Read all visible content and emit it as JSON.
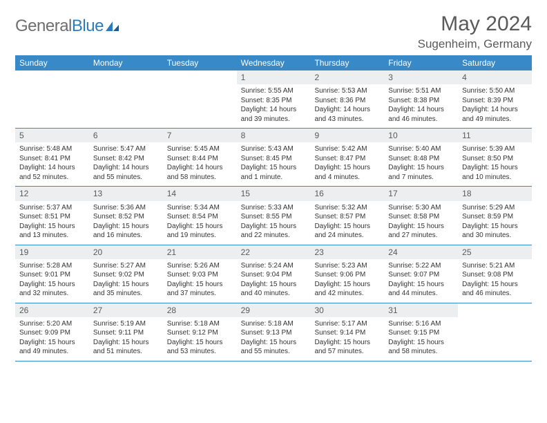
{
  "logo": {
    "text_gray": "General",
    "text_blue": "Blue"
  },
  "title": "May 2024",
  "location": "Sugenheim, Germany",
  "colors": {
    "header_bg": "#3889c7",
    "header_text": "#ffffff",
    "daynum_bg": "#eceeef",
    "text": "#333333",
    "title_text": "#5a5a5a",
    "logo_gray": "#6f6f6f",
    "logo_blue": "#2d7bbd",
    "row_border": "#3889c7"
  },
  "day_names": [
    "Sunday",
    "Monday",
    "Tuesday",
    "Wednesday",
    "Thursday",
    "Friday",
    "Saturday"
  ],
  "weeks": [
    [
      {
        "n": "",
        "empty": true
      },
      {
        "n": "",
        "empty": true
      },
      {
        "n": "",
        "empty": true
      },
      {
        "n": "1",
        "sr": "Sunrise: 5:55 AM",
        "ss": "Sunset: 8:35 PM",
        "dl1": "Daylight: 14 hours",
        "dl2": "and 39 minutes."
      },
      {
        "n": "2",
        "sr": "Sunrise: 5:53 AM",
        "ss": "Sunset: 8:36 PM",
        "dl1": "Daylight: 14 hours",
        "dl2": "and 43 minutes."
      },
      {
        "n": "3",
        "sr": "Sunrise: 5:51 AM",
        "ss": "Sunset: 8:38 PM",
        "dl1": "Daylight: 14 hours",
        "dl2": "and 46 minutes."
      },
      {
        "n": "4",
        "sr": "Sunrise: 5:50 AM",
        "ss": "Sunset: 8:39 PM",
        "dl1": "Daylight: 14 hours",
        "dl2": "and 49 minutes."
      }
    ],
    [
      {
        "n": "5",
        "sr": "Sunrise: 5:48 AM",
        "ss": "Sunset: 8:41 PM",
        "dl1": "Daylight: 14 hours",
        "dl2": "and 52 minutes."
      },
      {
        "n": "6",
        "sr": "Sunrise: 5:47 AM",
        "ss": "Sunset: 8:42 PM",
        "dl1": "Daylight: 14 hours",
        "dl2": "and 55 minutes."
      },
      {
        "n": "7",
        "sr": "Sunrise: 5:45 AM",
        "ss": "Sunset: 8:44 PM",
        "dl1": "Daylight: 14 hours",
        "dl2": "and 58 minutes."
      },
      {
        "n": "8",
        "sr": "Sunrise: 5:43 AM",
        "ss": "Sunset: 8:45 PM",
        "dl1": "Daylight: 15 hours",
        "dl2": "and 1 minute."
      },
      {
        "n": "9",
        "sr": "Sunrise: 5:42 AM",
        "ss": "Sunset: 8:47 PM",
        "dl1": "Daylight: 15 hours",
        "dl2": "and 4 minutes."
      },
      {
        "n": "10",
        "sr": "Sunrise: 5:40 AM",
        "ss": "Sunset: 8:48 PM",
        "dl1": "Daylight: 15 hours",
        "dl2": "and 7 minutes."
      },
      {
        "n": "11",
        "sr": "Sunrise: 5:39 AM",
        "ss": "Sunset: 8:50 PM",
        "dl1": "Daylight: 15 hours",
        "dl2": "and 10 minutes."
      }
    ],
    [
      {
        "n": "12",
        "sr": "Sunrise: 5:37 AM",
        "ss": "Sunset: 8:51 PM",
        "dl1": "Daylight: 15 hours",
        "dl2": "and 13 minutes."
      },
      {
        "n": "13",
        "sr": "Sunrise: 5:36 AM",
        "ss": "Sunset: 8:52 PM",
        "dl1": "Daylight: 15 hours",
        "dl2": "and 16 minutes."
      },
      {
        "n": "14",
        "sr": "Sunrise: 5:34 AM",
        "ss": "Sunset: 8:54 PM",
        "dl1": "Daylight: 15 hours",
        "dl2": "and 19 minutes."
      },
      {
        "n": "15",
        "sr": "Sunrise: 5:33 AM",
        "ss": "Sunset: 8:55 PM",
        "dl1": "Daylight: 15 hours",
        "dl2": "and 22 minutes."
      },
      {
        "n": "16",
        "sr": "Sunrise: 5:32 AM",
        "ss": "Sunset: 8:57 PM",
        "dl1": "Daylight: 15 hours",
        "dl2": "and 24 minutes."
      },
      {
        "n": "17",
        "sr": "Sunrise: 5:30 AM",
        "ss": "Sunset: 8:58 PM",
        "dl1": "Daylight: 15 hours",
        "dl2": "and 27 minutes."
      },
      {
        "n": "18",
        "sr": "Sunrise: 5:29 AM",
        "ss": "Sunset: 8:59 PM",
        "dl1": "Daylight: 15 hours",
        "dl2": "and 30 minutes."
      }
    ],
    [
      {
        "n": "19",
        "sr": "Sunrise: 5:28 AM",
        "ss": "Sunset: 9:01 PM",
        "dl1": "Daylight: 15 hours",
        "dl2": "and 32 minutes."
      },
      {
        "n": "20",
        "sr": "Sunrise: 5:27 AM",
        "ss": "Sunset: 9:02 PM",
        "dl1": "Daylight: 15 hours",
        "dl2": "and 35 minutes."
      },
      {
        "n": "21",
        "sr": "Sunrise: 5:26 AM",
        "ss": "Sunset: 9:03 PM",
        "dl1": "Daylight: 15 hours",
        "dl2": "and 37 minutes."
      },
      {
        "n": "22",
        "sr": "Sunrise: 5:24 AM",
        "ss": "Sunset: 9:04 PM",
        "dl1": "Daylight: 15 hours",
        "dl2": "and 40 minutes."
      },
      {
        "n": "23",
        "sr": "Sunrise: 5:23 AM",
        "ss": "Sunset: 9:06 PM",
        "dl1": "Daylight: 15 hours",
        "dl2": "and 42 minutes."
      },
      {
        "n": "24",
        "sr": "Sunrise: 5:22 AM",
        "ss": "Sunset: 9:07 PM",
        "dl1": "Daylight: 15 hours",
        "dl2": "and 44 minutes."
      },
      {
        "n": "25",
        "sr": "Sunrise: 5:21 AM",
        "ss": "Sunset: 9:08 PM",
        "dl1": "Daylight: 15 hours",
        "dl2": "and 46 minutes."
      }
    ],
    [
      {
        "n": "26",
        "sr": "Sunrise: 5:20 AM",
        "ss": "Sunset: 9:09 PM",
        "dl1": "Daylight: 15 hours",
        "dl2": "and 49 minutes."
      },
      {
        "n": "27",
        "sr": "Sunrise: 5:19 AM",
        "ss": "Sunset: 9:11 PM",
        "dl1": "Daylight: 15 hours",
        "dl2": "and 51 minutes."
      },
      {
        "n": "28",
        "sr": "Sunrise: 5:18 AM",
        "ss": "Sunset: 9:12 PM",
        "dl1": "Daylight: 15 hours",
        "dl2": "and 53 minutes."
      },
      {
        "n": "29",
        "sr": "Sunrise: 5:18 AM",
        "ss": "Sunset: 9:13 PM",
        "dl1": "Daylight: 15 hours",
        "dl2": "and 55 minutes."
      },
      {
        "n": "30",
        "sr": "Sunrise: 5:17 AM",
        "ss": "Sunset: 9:14 PM",
        "dl1": "Daylight: 15 hours",
        "dl2": "and 57 minutes."
      },
      {
        "n": "31",
        "sr": "Sunrise: 5:16 AM",
        "ss": "Sunset: 9:15 PM",
        "dl1": "Daylight: 15 hours",
        "dl2": "and 58 minutes."
      },
      {
        "n": "",
        "empty": true
      }
    ]
  ]
}
